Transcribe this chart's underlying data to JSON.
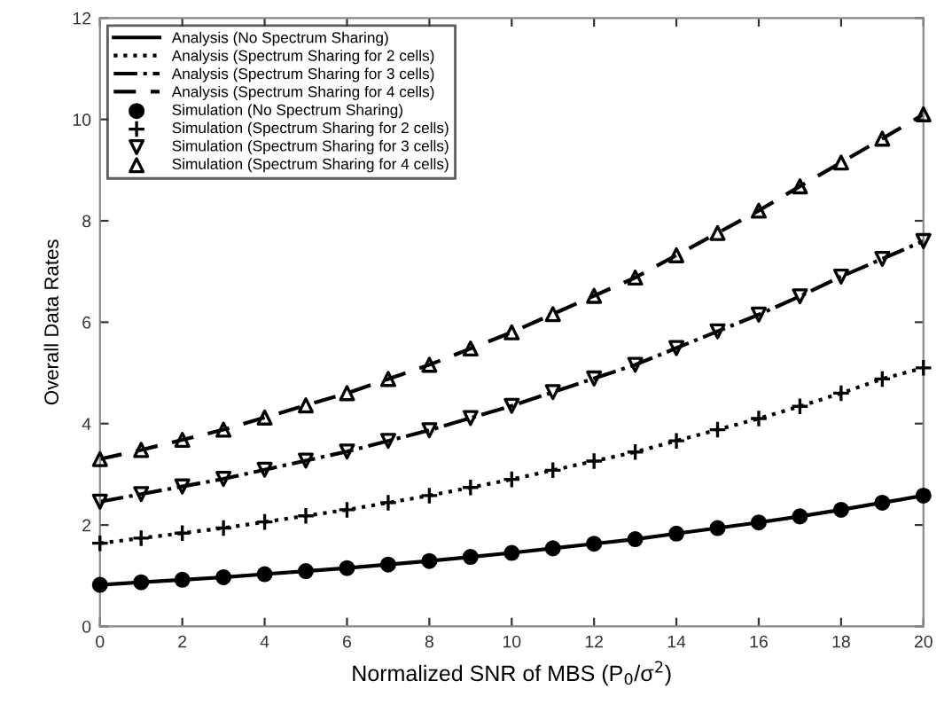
{
  "chart_data": {
    "type": "line",
    "xlabel": "Normalized SNR of MBS (P$_{0}$/σ$^{2}$)",
    "ylabel": "Overall Data Rates",
    "x": [
      0,
      1,
      2,
      3,
      4,
      5,
      6,
      7,
      8,
      9,
      10,
      11,
      12,
      13,
      14,
      15,
      16,
      17,
      18,
      19,
      20
    ],
    "xlim": [
      0,
      20
    ],
    "xticks": [
      0,
      2,
      4,
      6,
      8,
      10,
      12,
      14,
      16,
      18,
      20
    ],
    "ylim": [
      0,
      12
    ],
    "yticks": [
      0,
      2,
      4,
      6,
      8,
      10,
      12
    ],
    "grid": false,
    "legend": "top left",
    "series": [
      {
        "name": "Analysis (No Spectrum Sharing)",
        "line_style": "solid",
        "marker": "none",
        "color": "#000000",
        "values": [
          0.82,
          0.87,
          0.92,
          0.97,
          1.03,
          1.09,
          1.15,
          1.22,
          1.29,
          1.37,
          1.45,
          1.54,
          1.63,
          1.72,
          1.83,
          1.94,
          2.05,
          2.17,
          2.3,
          2.44,
          2.58
        ]
      },
      {
        "name": "Analysis (Spectrum Sharing for 2 cells)",
        "line_style": "dotted",
        "marker": "none",
        "color": "#000000",
        "values": [
          1.64,
          1.74,
          1.84,
          1.94,
          2.06,
          2.18,
          2.3,
          2.44,
          2.58,
          2.74,
          2.9,
          3.08,
          3.26,
          3.44,
          3.66,
          3.88,
          4.1,
          4.34,
          4.6,
          4.88,
          5.1
        ]
      },
      {
        "name": "Analysis (Spectrum Sharing for 3 cells)",
        "line_style": "dashdot",
        "marker": "none",
        "color": "#000000",
        "values": [
          2.46,
          2.61,
          2.76,
          2.91,
          3.09,
          3.27,
          3.45,
          3.66,
          3.87,
          4.11,
          4.35,
          4.62,
          4.89,
          5.16,
          5.49,
          5.82,
          6.15,
          6.51,
          6.9,
          7.25,
          7.6
        ]
      },
      {
        "name": "Analysis (Spectrum Sharing for 4 cells)",
        "line_style": "dashed",
        "marker": "none",
        "color": "#000000",
        "values": [
          3.3,
          3.48,
          3.68,
          3.88,
          4.12,
          4.36,
          4.6,
          4.88,
          5.16,
          5.48,
          5.8,
          6.16,
          6.52,
          6.88,
          7.32,
          7.76,
          8.2,
          8.68,
          9.15,
          9.62,
          10.1
        ]
      },
      {
        "name": "Simulation (No Spectrum Sharing)",
        "type": "scatter",
        "marker": "circle",
        "color": "#000000",
        "values": [
          0.82,
          0.87,
          0.92,
          0.97,
          1.03,
          1.09,
          1.15,
          1.22,
          1.29,
          1.37,
          1.45,
          1.54,
          1.63,
          1.72,
          1.83,
          1.94,
          2.05,
          2.17,
          2.3,
          2.44,
          2.58
        ]
      },
      {
        "name": "Simulation (Spectrum Sharing for 2 cells)",
        "type": "scatter",
        "marker": "plus",
        "color": "#000000",
        "values": [
          1.64,
          1.74,
          1.84,
          1.94,
          2.06,
          2.18,
          2.3,
          2.44,
          2.58,
          2.74,
          2.9,
          3.08,
          3.26,
          3.44,
          3.66,
          3.88,
          4.1,
          4.34,
          4.6,
          4.88,
          5.1
        ]
      },
      {
        "name": "Simulation (Spectrum Sharing for 3 cells)",
        "type": "scatter",
        "marker": "triangle_down",
        "color": "#000000",
        "values": [
          2.46,
          2.61,
          2.76,
          2.91,
          3.09,
          3.27,
          3.45,
          3.66,
          3.87,
          4.11,
          4.35,
          4.62,
          4.89,
          5.16,
          5.49,
          5.82,
          6.15,
          6.51,
          6.9,
          7.25,
          7.6
        ]
      },
      {
        "name": "Simulation (Spectrum Sharing for 4 cells)",
        "type": "scatter",
        "marker": "triangle",
        "color": "#000000",
        "values": [
          3.3,
          3.48,
          3.68,
          3.88,
          4.12,
          4.36,
          4.6,
          4.88,
          5.16,
          5.48,
          5.8,
          6.16,
          6.52,
          6.88,
          7.32,
          7.76,
          8.2,
          8.68,
          9.15,
          9.62,
          10.1
        ]
      }
    ]
  }
}
